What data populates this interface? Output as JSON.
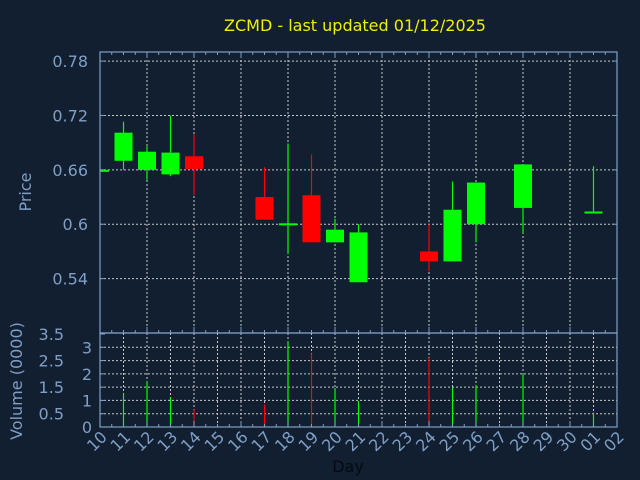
{
  "chart_data": {
    "type": "candlestick",
    "title": "ZCMD - last updated 01/12/2025",
    "xlabel": "Day",
    "x_tick_labels": [
      "10",
      "11",
      "12",
      "13",
      "14",
      "15",
      "16",
      "17",
      "18",
      "19",
      "20",
      "21",
      "22",
      "23",
      "24",
      "25",
      "26",
      "27",
      "28",
      "29",
      "30",
      "01",
      "02"
    ],
    "price_panel": {
      "ylabel": "Price",
      "ylim": [
        0.48,
        0.79
      ],
      "y_ticks": [
        "0.54",
        "0.6",
        "0.66",
        "0.72",
        "0.78"
      ],
      "grid": true
    },
    "volume_panel": {
      "ylabel": "Volume (0000)",
      "ylim": [
        0,
        3.5
      ],
      "y_ticks": [
        "0",
        "0.5",
        "1",
        "1.5",
        "2",
        "2.5",
        "3",
        "3.5"
      ],
      "grid": true
    },
    "candles": [
      {
        "day": "10",
        "open": 0.66,
        "high": 0.66,
        "low": 0.66,
        "close": 0.66,
        "volume": 0
      },
      {
        "day": "11",
        "open": 0.67,
        "high": 0.713,
        "low": 0.66,
        "close": 0.701,
        "volume": 1.26
      },
      {
        "day": "12",
        "open": 0.66,
        "high": 0.686,
        "low": 0.649,
        "close": 0.68,
        "volume": 1.72
      },
      {
        "day": "13",
        "open": 0.655,
        "high": 0.72,
        "low": 0.653,
        "close": 0.679,
        "volume": 1.1
      },
      {
        "day": "14",
        "open": 0.675,
        "high": 0.699,
        "low": 0.632,
        "close": 0.661,
        "volume": 0.66
      },
      {
        "day": "17",
        "open": 0.63,
        "high": 0.663,
        "low": 0.605,
        "close": 0.605,
        "volume": 0.85
      },
      {
        "day": "18",
        "open": 0.6,
        "high": 0.689,
        "low": 0.567,
        "close": 0.601,
        "volume": 3.23
      },
      {
        "day": "19",
        "open": 0.632,
        "high": 0.677,
        "low": 0.58,
        "close": 0.58,
        "volume": 2.77
      },
      {
        "day": "20",
        "open": 0.58,
        "high": 0.606,
        "low": 0.58,
        "close": 0.594,
        "volume": 1.47
      },
      {
        "day": "21",
        "open": 0.536,
        "high": 0.6,
        "low": 0.536,
        "close": 0.591,
        "volume": 0.96
      },
      {
        "day": "24",
        "open": 0.57,
        "high": 0.6,
        "low": 0.548,
        "close": 0.559,
        "volume": 2.6
      },
      {
        "day": "25",
        "open": 0.559,
        "high": 0.647,
        "low": 0.559,
        "close": 0.616,
        "volume": 1.48
      },
      {
        "day": "26",
        "open": 0.6,
        "high": 0.646,
        "low": 0.58,
        "close": 0.646,
        "volume": 1.58
      },
      {
        "day": "28",
        "open": 0.618,
        "high": 0.666,
        "low": 0.59,
        "close": 0.666,
        "volume": 2.01
      },
      {
        "day": "01",
        "open": 0.614,
        "high": 0.664,
        "low": 0.614,
        "close": 0.614,
        "volume": 0.54
      }
    ],
    "colors": {
      "up": "#00ff00",
      "down": "#ff0000",
      "background": "#111f30",
      "axis": "#7f9fc6",
      "grid": "#c8c8c8",
      "title": "#f0f000"
    }
  }
}
